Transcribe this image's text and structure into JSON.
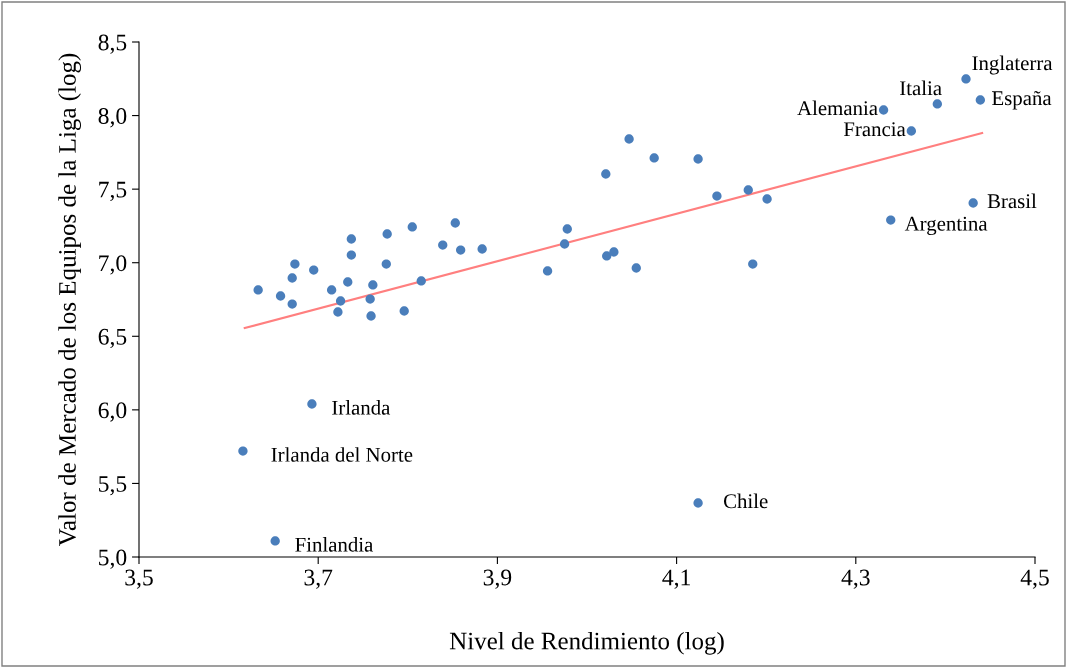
{
  "chart_data": {
    "type": "scatter",
    "xlabel": "Nivel de Rendimiento (log)",
    "ylabel": "Valor de Mercado de los Equipos de la Liga (log)",
    "xlim": [
      3.5,
      4.5
    ],
    "xticks": [
      {
        "value": 3.5,
        "label": "3,5"
      },
      {
        "value": 3.7,
        "label": "3,7"
      },
      {
        "value": 3.9,
        "label": "3,9"
      },
      {
        "value": 4.1,
        "label": "4,1"
      },
      {
        "value": 4.3,
        "label": "4,3"
      },
      {
        "value": 4.5,
        "label": "4,5"
      }
    ],
    "ylim": [
      5.0,
      8.5
    ],
    "yticks": [
      {
        "value": 5.0,
        "label": "5,0"
      },
      {
        "value": 5.5,
        "label": "5,5"
      },
      {
        "value": 6.0,
        "label": "6,0"
      },
      {
        "value": 6.5,
        "label": "6,5"
      },
      {
        "value": 7.0,
        "label": "7,0"
      },
      {
        "value": 7.5,
        "label": "7,5"
      },
      {
        "value": 8.0,
        "label": "8,0"
      },
      {
        "value": 8.5,
        "label": "8,5"
      }
    ],
    "grid": false,
    "legend": false,
    "series": [
      {
        "marker": "circle",
        "color": "#4a7ebb",
        "x": [
          3.633,
          3.658,
          3.671,
          3.671,
          3.674,
          3.695,
          3.715,
          3.725,
          3.722,
          3.733,
          3.737,
          3.737,
          3.761,
          3.758,
          3.759,
          3.776,
          3.777,
          3.796,
          3.805,
          3.815,
          3.839,
          3.853,
          3.859,
          3.883,
          3.956,
          3.975,
          3.978,
          4.021,
          4.022,
          4.03,
          4.047,
          4.055,
          4.075,
          4.124,
          4.145,
          4.18,
          4.201,
          4.185,
          4.331,
          4.391,
          4.423,
          4.439,
          4.362,
          4.431,
          4.339,
          3.693,
          3.616,
          3.652,
          4.124
        ],
        "values": [
          6.815,
          6.774,
          6.719,
          6.896,
          6.991,
          6.95,
          6.815,
          6.74,
          6.665,
          6.869,
          7.161,
          7.052,
          6.849,
          6.753,
          6.638,
          6.991,
          7.195,
          6.672,
          7.243,
          6.876,
          7.12,
          7.27,
          7.086,
          7.093,
          6.944,
          7.127,
          7.229,
          7.603,
          7.046,
          7.073,
          7.841,
          6.964,
          7.712,
          7.705,
          7.453,
          7.494,
          7.433,
          6.991,
          8.038,
          8.079,
          8.249,
          8.106,
          7.895,
          7.406,
          7.29,
          6.04,
          5.72,
          5.109,
          5.367
        ]
      },
      {
        "type": "line",
        "color": "#ff7f7f",
        "x": [
          3.618,
          4.441
        ],
        "values": [
          6.556,
          7.882
        ]
      }
    ],
    "annotations": [
      {
        "text": "Alemania",
        "x": 4.331,
        "y": 8.038
      },
      {
        "text": "Italia",
        "x": 4.391,
        "y": 8.079
      },
      {
        "text": "Inglaterra",
        "x": 4.423,
        "y": 8.249
      },
      {
        "text": "España",
        "x": 4.439,
        "y": 8.106
      },
      {
        "text": "Francia",
        "x": 4.362,
        "y": 7.895
      },
      {
        "text": "Brasil",
        "x": 4.431,
        "y": 7.406
      },
      {
        "text": "Argentina",
        "x": 4.339,
        "y": 7.29
      },
      {
        "text": "Irlanda",
        "x": 3.693,
        "y": 6.04
      },
      {
        "text": "Irlanda del Norte",
        "x": 3.616,
        "y": 5.72
      },
      {
        "text": "Finlandia",
        "x": 3.652,
        "y": 5.109
      },
      {
        "text": "Chile",
        "x": 4.124,
        "y": 5.367
      }
    ]
  }
}
